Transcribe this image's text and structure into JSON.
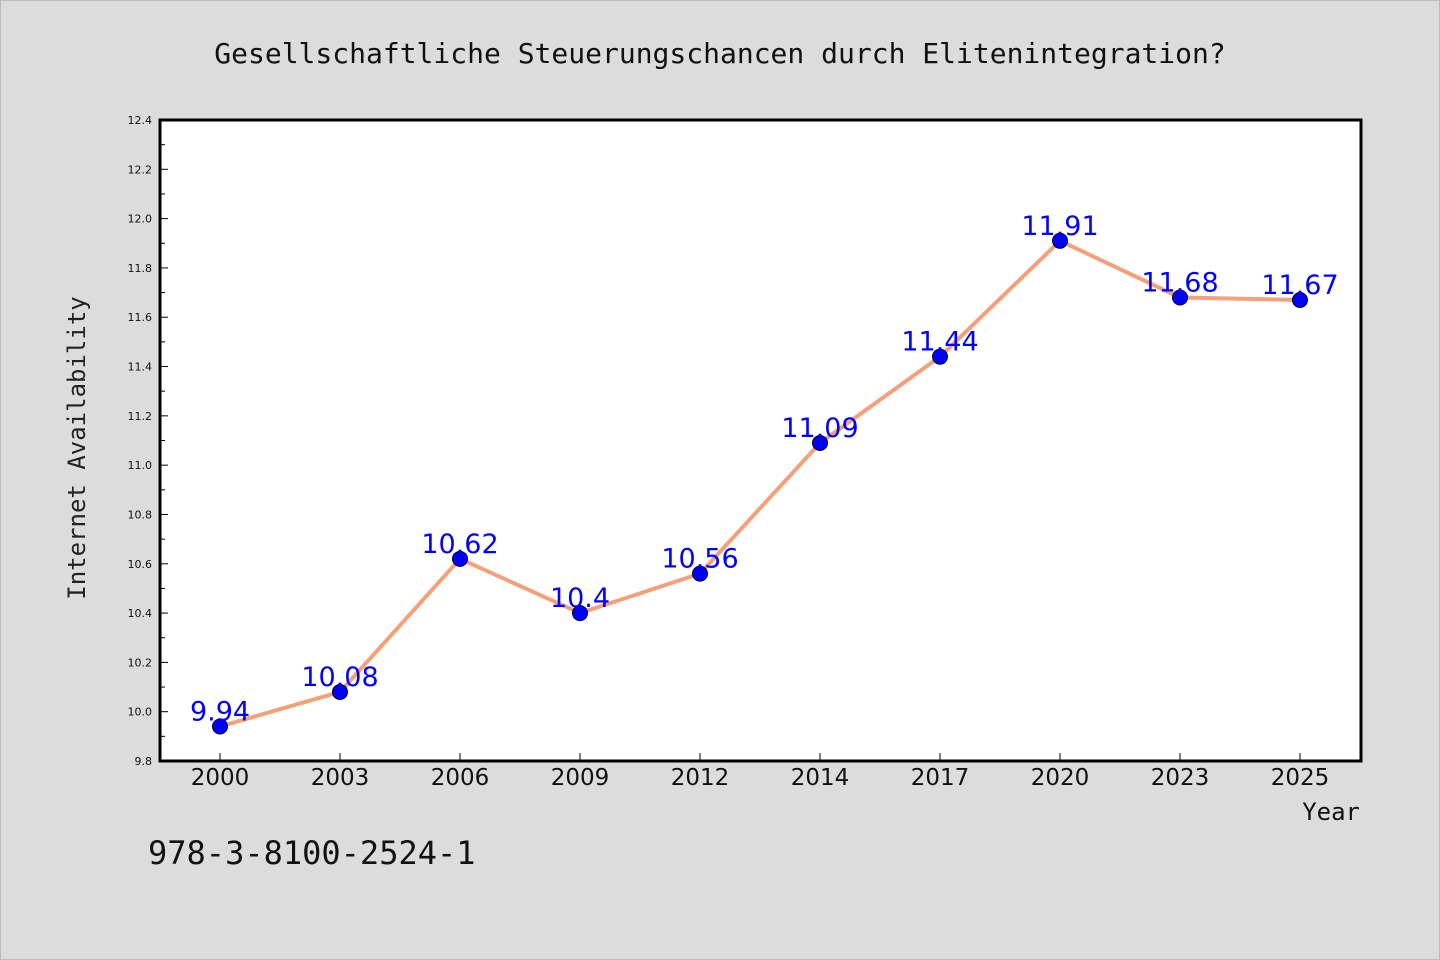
{
  "chart_data": {
    "type": "line",
    "title": "Gesellschaftliche Steuerungschancen durch Elitenintegration?",
    "xlabel": "Year",
    "ylabel": "Internet Availability",
    "categories": [
      "2000",
      "2003",
      "2006",
      "2009",
      "2012",
      "2014",
      "2017",
      "2020",
      "2023",
      "2025"
    ],
    "series": [
      {
        "values": [
          9.94,
          10.08,
          10.62,
          10.4,
          10.56,
          11.09,
          11.44,
          11.91,
          11.68,
          11.67
        ],
        "data_labels": [
          "9.94",
          "10.08",
          "10.62",
          "10.4",
          "10.56",
          "11.09",
          "11.44",
          "11.91",
          "11.68",
          "11.67"
        ],
        "line_color": "#f4a07a",
        "marker_color": "#0000ff"
      }
    ],
    "ylim": [
      9.8,
      12.4
    ],
    "yticks": [
      "9.8",
      "10.0",
      "10.2",
      "10.4",
      "10.6",
      "10.8",
      "11.0",
      "11.2",
      "11.4",
      "11.6",
      "11.8",
      "12.0",
      "12.2",
      "12.4"
    ],
    "grid": false,
    "legend": "none"
  },
  "footer": {
    "isbn": "978-3-8100-2524-1"
  },
  "colors": {
    "background": "#dcdcdc",
    "plot_background": "#ffffff",
    "line": "#f4a07a",
    "marker": "#0000ff",
    "data_label": "#0000ff"
  }
}
